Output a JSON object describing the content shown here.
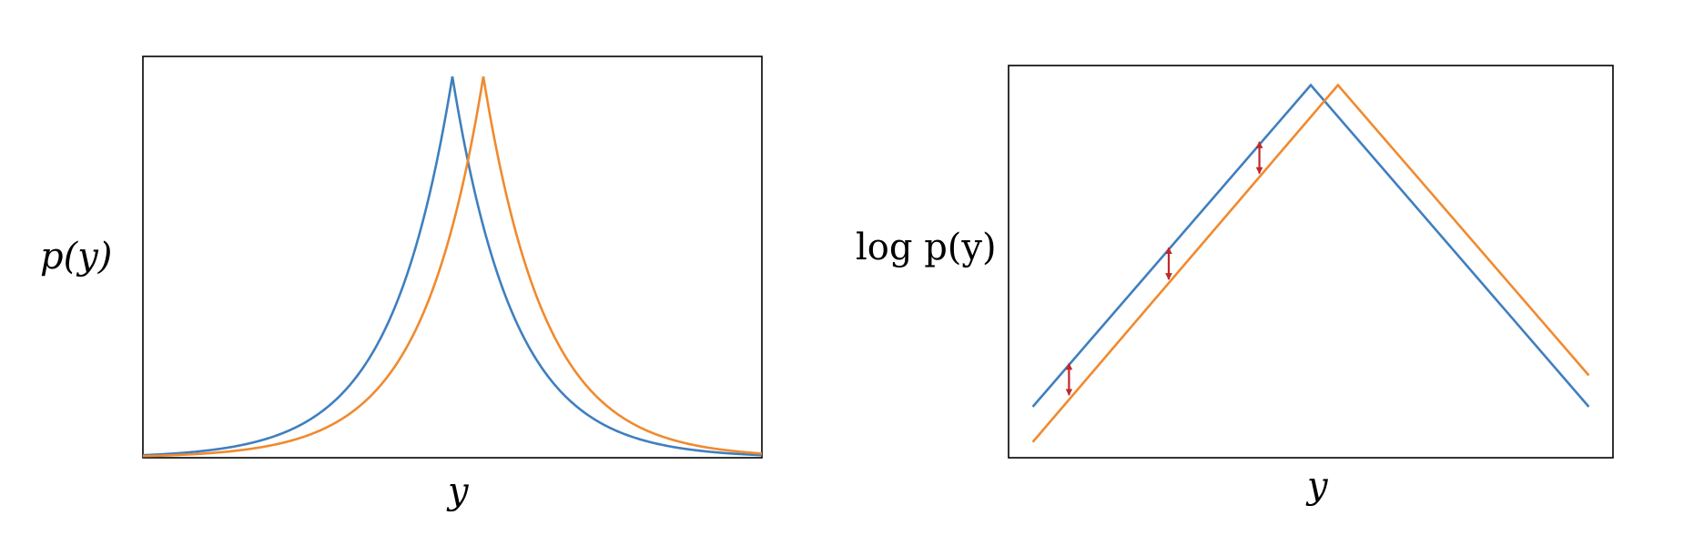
{
  "colors": {
    "blue": "#3f7fbf",
    "orange": "#f08a2e",
    "arrow": "#c0282d",
    "axes": "#000000"
  },
  "chart_data": [
    {
      "type": "line",
      "title": "",
      "xlabel": "y",
      "ylabel": "p(y)",
      "xlim": [
        -1,
        1
      ],
      "ylim": [
        0,
        1
      ],
      "ticks": "none",
      "grid": false,
      "legend": "none",
      "series": [
        {
          "color": "#3f7fbf",
          "shape": "laplace density",
          "peak_x": 0.0,
          "peak_y": 0.95,
          "scale": 0.2
        },
        {
          "color": "#f08a2e",
          "shape": "laplace density",
          "peak_x": 0.1,
          "peak_y": 0.95,
          "scale": 0.2
        }
      ]
    },
    {
      "type": "line",
      "title": "",
      "xlabel": "y",
      "ylabel": "log p(y)",
      "xlim": [
        -1,
        1
      ],
      "ylim": [
        0,
        1
      ],
      "ticks": "none",
      "grid": false,
      "legend": "none",
      "series": [
        {
          "color": "#3f7fbf",
          "shape": "piecewise linear",
          "points": [
            [
              -0.92,
              0.13
            ],
            [
              0.0,
              0.95
            ],
            [
              0.92,
              0.13
            ]
          ]
        },
        {
          "color": "#f08a2e",
          "shape": "piecewise linear",
          "points": [
            [
              -0.92,
              0.04
            ],
            [
              0.09,
              0.95
            ],
            [
              0.92,
              0.21
            ]
          ]
        }
      ],
      "annotations": [
        {
          "type": "double-arrow",
          "color": "#c0282d",
          "x": -0.8,
          "y1": 0.245,
          "y2": 0.155
        },
        {
          "type": "double-arrow",
          "color": "#c0282d",
          "x": -0.47,
          "y1": 0.54,
          "y2": 0.45
        },
        {
          "type": "double-arrow",
          "color": "#c0282d",
          "x": -0.17,
          "y1": 0.81,
          "y2": 0.72
        }
      ]
    }
  ]
}
